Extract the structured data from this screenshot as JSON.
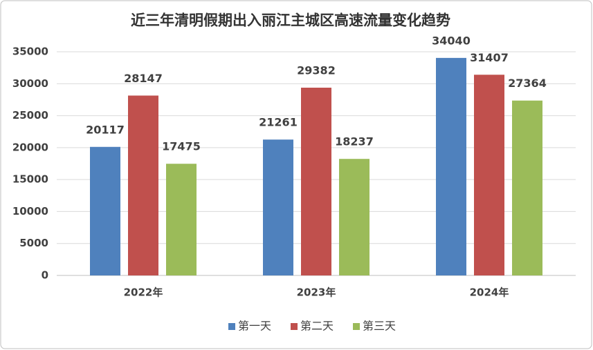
{
  "chart_data": {
    "type": "bar",
    "title": "近三年清明假期出入丽江主城区高速流量变化趋势",
    "categories": [
      "2022年",
      "2023年",
      "2024年"
    ],
    "series": [
      {
        "name": "第一天",
        "color": "#4f81bd",
        "values": [
          20117,
          21261,
          34040
        ]
      },
      {
        "name": "第二天",
        "color": "#c0504d",
        "values": [
          28147,
          29382,
          31407
        ]
      },
      {
        "name": "第三天",
        "color": "#9bbb59",
        "values": [
          17475,
          18237,
          27364
        ]
      }
    ],
    "ylim": [
      0,
      35000
    ],
    "yticks": [
      0,
      5000,
      10000,
      15000,
      20000,
      25000,
      30000,
      35000
    ],
    "grid": true,
    "legend": "bottom"
  }
}
